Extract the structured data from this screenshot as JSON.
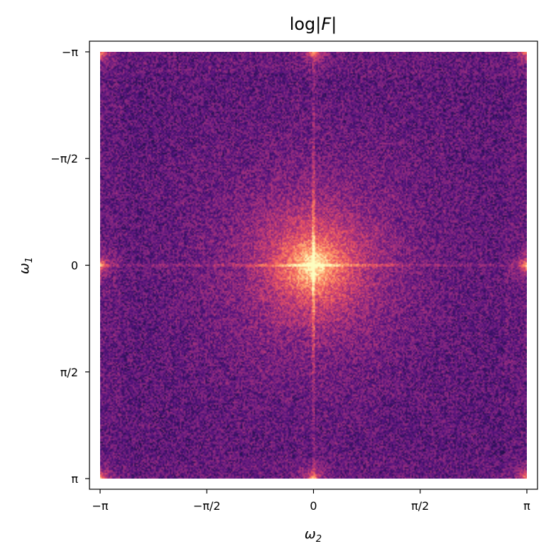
{
  "chart_data": {
    "type": "heatmap",
    "title_prefix": "log",
    "title_arg": "F",
    "xlabel_symbol": "ω",
    "xlabel_sub": "2",
    "ylabel_symbol": "ω",
    "ylabel_sub": "1",
    "xlim": [
      -3.14159,
      3.14159
    ],
    "ylim": [
      3.14159,
      -3.14159
    ],
    "x_ticks": [
      {
        "value": -3.14159,
        "label": "−π"
      },
      {
        "value": -1.5708,
        "label": "−π/2"
      },
      {
        "value": 0,
        "label": "0"
      },
      {
        "value": 1.5708,
        "label": "π/2"
      },
      {
        "value": 3.14159,
        "label": "π"
      }
    ],
    "y_ticks": [
      {
        "value": -3.14159,
        "label": "−π"
      },
      {
        "value": -1.5708,
        "label": "−π/2"
      },
      {
        "value": 0,
        "label": "0"
      },
      {
        "value": 1.5708,
        "label": "π/2"
      },
      {
        "value": 3.14159,
        "label": "π"
      }
    ],
    "colormap": "magma",
    "colormap_stops": [
      "#000004",
      "#1d1147",
      "#51127c",
      "#822681",
      "#b73779",
      "#e75263",
      "#fc8961",
      "#fec488",
      "#fcfdbf"
    ],
    "grid": false,
    "legend": "none"
  }
}
